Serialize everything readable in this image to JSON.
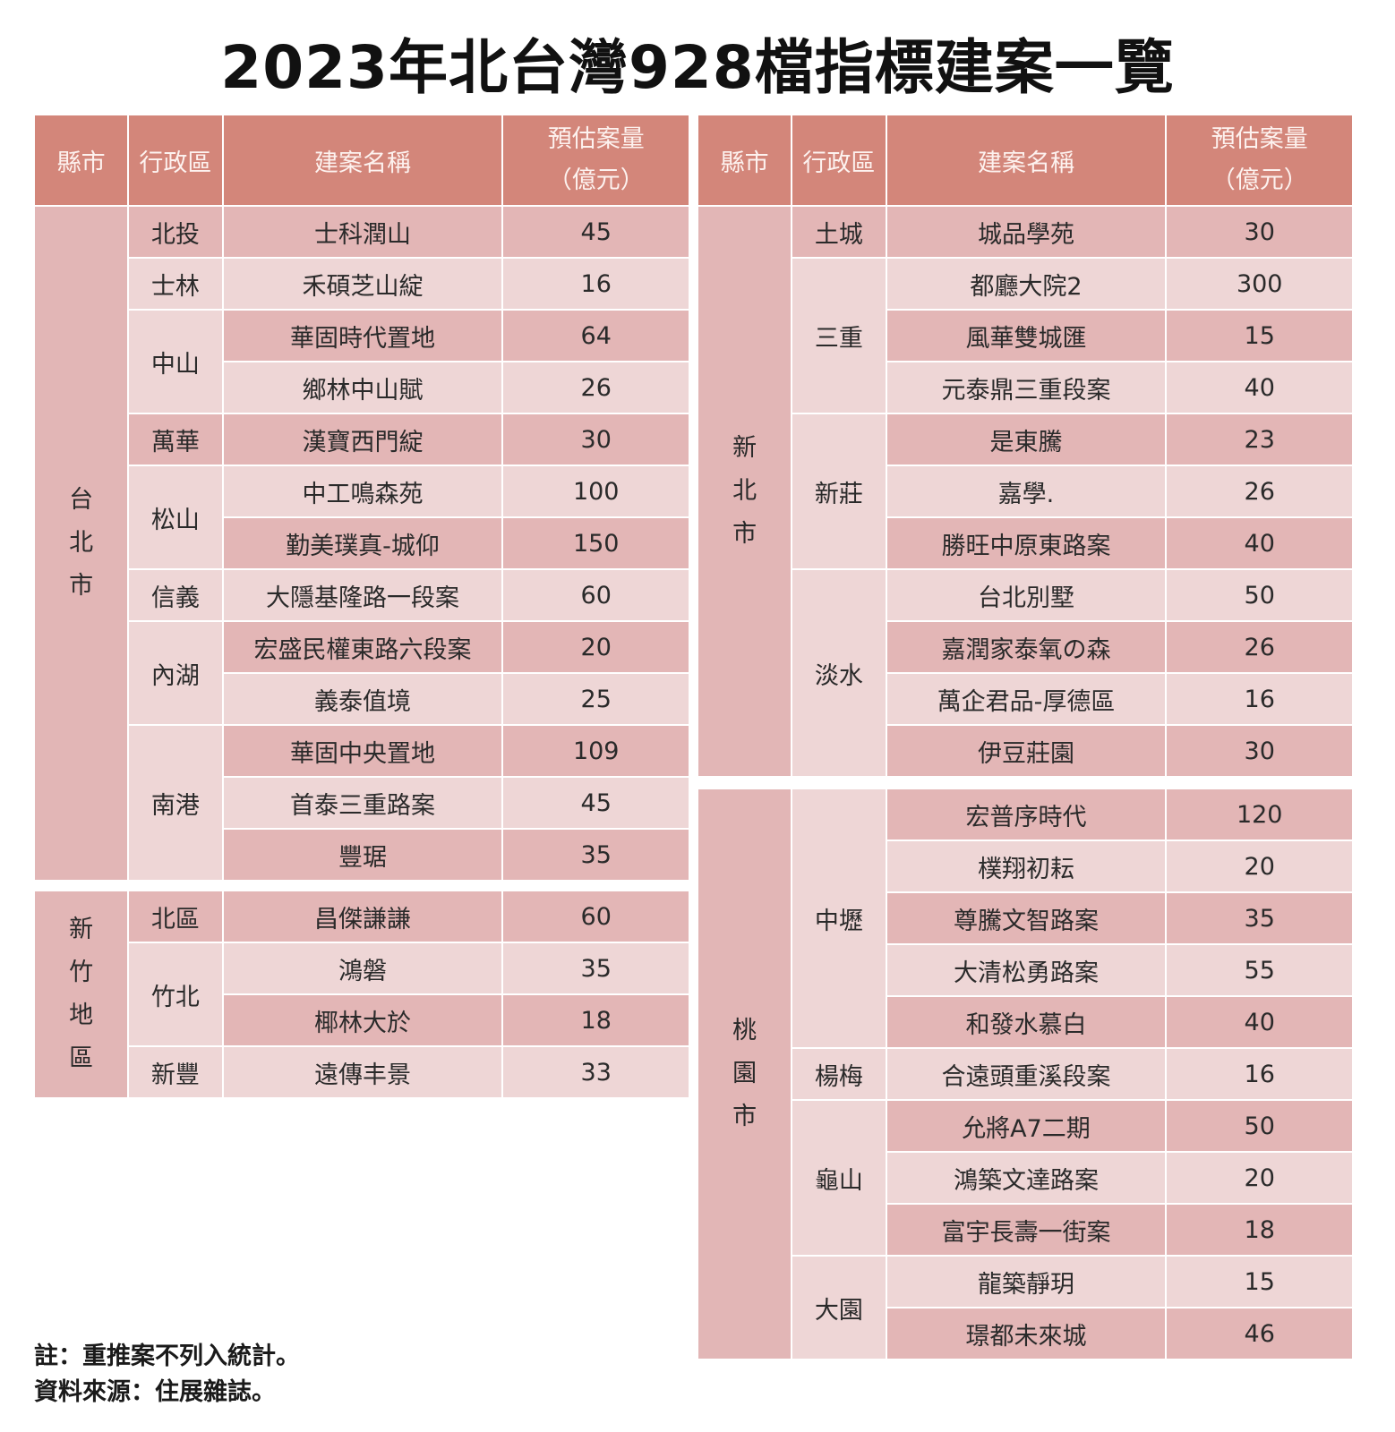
{
  "title": "2023年北台灣928檔指標建案一覽",
  "colors": {
    "header": "#d3867a",
    "county_cell": "#e2b6b6",
    "row_dark": "#e3b6b6",
    "row_light": "#eed6d6"
  },
  "headers": {
    "county": "縣市",
    "district": "行政區",
    "project": "建案名稱",
    "value_line1": "預估案量",
    "value_line2": "（億元）"
  },
  "taipei": {
    "county": [
      "台",
      "北",
      "市"
    ],
    "districts": [
      {
        "name": "北投",
        "projects": [
          {
            "name": "士科潤山",
            "value": "45"
          }
        ]
      },
      {
        "name": "士林",
        "projects": [
          {
            "name": "禾碩芝山綻",
            "value": "16"
          }
        ]
      },
      {
        "name": "中山",
        "projects": [
          {
            "name": "華固時代置地",
            "value": "64"
          },
          {
            "name": "鄉林中山賦",
            "value": "26"
          }
        ]
      },
      {
        "name": "萬華",
        "projects": [
          {
            "name": "漢寶西門綻",
            "value": "30"
          }
        ]
      },
      {
        "name": "松山",
        "projects": [
          {
            "name": "中工鳴森苑",
            "value": "100"
          },
          {
            "name": "勤美璞真-城仰",
            "value": "150"
          }
        ]
      },
      {
        "name": "信義",
        "projects": [
          {
            "name": "大隱基隆路一段案",
            "value": "60"
          }
        ]
      },
      {
        "name": "內湖",
        "projects": [
          {
            "name": "宏盛民權東路六段案",
            "value": "20"
          },
          {
            "name": "義泰值境",
            "value": "25"
          }
        ]
      },
      {
        "name": "南港",
        "projects": [
          {
            "name": "華固中央置地",
            "value": "109"
          },
          {
            "name": "首泰三重路案",
            "value": "45"
          },
          {
            "name": "豐琚",
            "value": "35"
          }
        ]
      }
    ]
  },
  "hsinchu": {
    "county": [
      "新",
      "竹",
      "地",
      "區"
    ],
    "districts": [
      {
        "name": "北區",
        "projects": [
          {
            "name": "昌傑謙謙",
            "value": "60"
          }
        ]
      },
      {
        "name": "竹北",
        "projects": [
          {
            "name": "鴻磐",
            "value": "35"
          },
          {
            "name": "椰林大於",
            "value": "18"
          }
        ]
      },
      {
        "name": "新豐",
        "projects": [
          {
            "name": "遠傳丰景",
            "value": "33"
          }
        ]
      }
    ]
  },
  "new_taipei": {
    "county": [
      "新",
      "北",
      "市"
    ],
    "districts": [
      {
        "name": "土城",
        "projects": [
          {
            "name": "城品學苑",
            "value": "30"
          }
        ]
      },
      {
        "name": "三重",
        "projects": [
          {
            "name": "都廳大院2",
            "value": "300"
          },
          {
            "name": "風華雙城匯",
            "value": "15"
          },
          {
            "name": "元泰鼎三重段案",
            "value": "40"
          }
        ]
      },
      {
        "name": "新莊",
        "projects": [
          {
            "name": "是東騰",
            "value": "23"
          },
          {
            "name": "嘉學.",
            "value": "26"
          },
          {
            "name": "勝旺中原東路案",
            "value": "40"
          }
        ]
      },
      {
        "name": "淡水",
        "projects": [
          {
            "name": "台北別墅",
            "value": "50"
          },
          {
            "name": "嘉潤家泰氧の森",
            "value": "26"
          },
          {
            "name": "萬企君品-厚德區",
            "value": "16"
          },
          {
            "name": "伊豆莊園",
            "value": "30"
          }
        ]
      }
    ]
  },
  "taoyuan": {
    "county": [
      "桃",
      "園",
      "市"
    ],
    "districts": [
      {
        "name": "中壢",
        "projects": [
          {
            "name": "宏普序時代",
            "value": "120"
          },
          {
            "name": "樸翔初耘",
            "value": "20"
          },
          {
            "name": "尊騰文智路案",
            "value": "35"
          },
          {
            "name": "大清松勇路案",
            "value": "55"
          },
          {
            "name": "和發水慕白",
            "value": "40"
          }
        ]
      },
      {
        "name": "楊梅",
        "projects": [
          {
            "name": "合遠頭重溪段案",
            "value": "16"
          }
        ]
      },
      {
        "name": "龜山",
        "projects": [
          {
            "name": "允將A7二期",
            "value": "50"
          },
          {
            "name": "鴻築文達路案",
            "value": "20"
          },
          {
            "name": "富宇長壽一街案",
            "value": "18"
          }
        ]
      },
      {
        "name": "大園",
        "projects": [
          {
            "name": "龍築靜玥",
            "value": "15"
          },
          {
            "name": "璟都未來城",
            "value": "46"
          }
        ]
      }
    ]
  },
  "notes": {
    "note": "註：重推案不列入統計。",
    "source": "資料來源：住展雜誌。"
  }
}
